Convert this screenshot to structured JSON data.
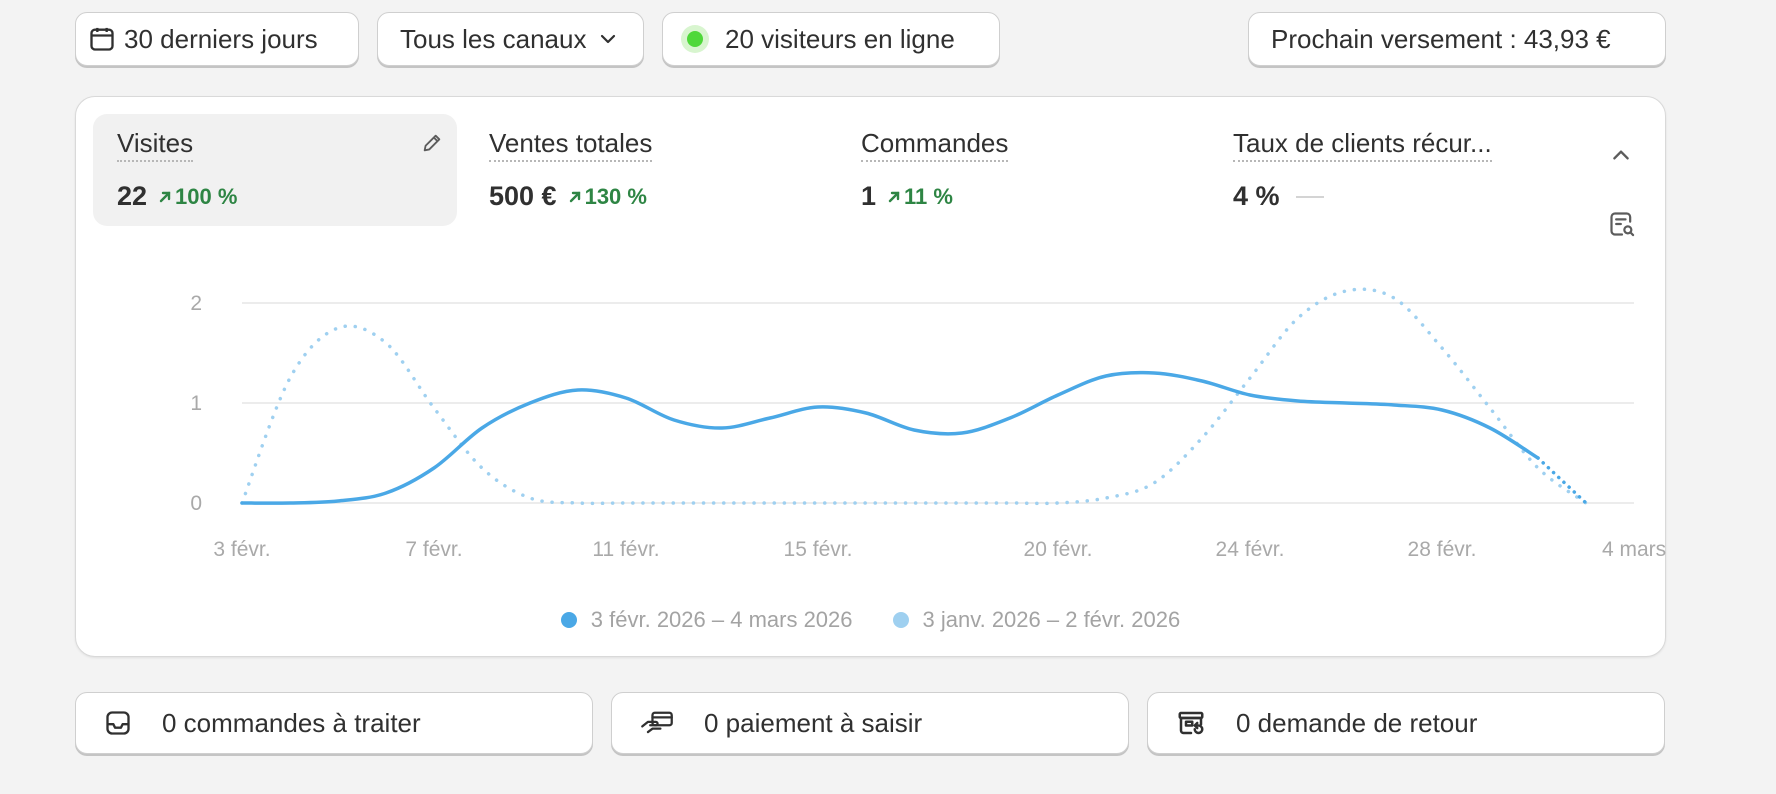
{
  "filters": {
    "date_range_label": "30 derniers jours",
    "channel_label": "Tous les canaux",
    "visitors_online_label": "20 visiteurs en ligne",
    "payout_label": "Prochain versement : 43,93 €"
  },
  "metrics": [
    {
      "label": "Visites",
      "value": "22",
      "change": "100 %",
      "trend": "up",
      "active": true
    },
    {
      "label": "Ventes totales",
      "value": "500 €",
      "change": "130 %",
      "trend": "up",
      "active": false
    },
    {
      "label": "Commandes",
      "value": "1",
      "change": "11 %",
      "trend": "up",
      "active": false
    },
    {
      "label": "Taux de clients récur...",
      "value": "4 %",
      "change": "",
      "trend": "flat",
      "active": false
    }
  ],
  "colors": {
    "current_series": "#4aa8e6",
    "previous_series": "#9fd0f0",
    "positive_change": "#2e8544",
    "online_dot": "#4fd83a"
  },
  "icons": {
    "date": "calendar-icon",
    "channel": "chevron-down-icon",
    "online": "status-dot-icon",
    "edit": "pencil-icon",
    "collapse": "chevron-up-icon",
    "report": "report-search-icon",
    "orders": "inbox-icon",
    "payments": "hand-card-icon",
    "returns": "return-box-icon"
  },
  "chart_data": {
    "type": "line",
    "ylim": [
      0,
      2
    ],
    "yticks": [
      "0",
      "1",
      "2"
    ],
    "xlim": [
      0,
      29
    ],
    "xtick_labels": [
      {
        "x": 0,
        "label": "3 févr."
      },
      {
        "x": 4,
        "label": "7 févr."
      },
      {
        "x": 8,
        "label": "11 févr."
      },
      {
        "x": 12,
        "label": "15 févr."
      },
      {
        "x": 17,
        "label": "20 févr."
      },
      {
        "x": 21,
        "label": "24 févr."
      },
      {
        "x": 25,
        "label": "28 févr."
      },
      {
        "x": 29,
        "label": "4 mars"
      }
    ],
    "series": [
      {
        "name": "3 févr. 2026 – 4 mars 2026",
        "style": "solid",
        "values": [
          0,
          0,
          0.02,
          0.1,
          0.35,
          0.75,
          1.0,
          1.13,
          1.05,
          0.83,
          0.75,
          0.85,
          0.96,
          0.9,
          0.73,
          0.7,
          0.85,
          1.08,
          1.27,
          1.3,
          1.22,
          1.08,
          1.02,
          1.0,
          0.98,
          0.93,
          0.75,
          0.45,
          0.0
        ]
      },
      {
        "name": "3 janv. 2026 – 2 févr. 2026",
        "style": "dotted",
        "values": [
          0,
          1.25,
          1.75,
          1.6,
          0.95,
          0.35,
          0.05,
          0,
          0,
          0,
          0,
          0,
          0,
          0,
          0,
          0,
          0,
          0,
          0.05,
          0.2,
          0.65,
          1.25,
          1.85,
          2.12,
          2.05,
          1.55,
          0.95,
          0.35,
          0
        ]
      }
    ],
    "legend": "bottom-center"
  },
  "tasks": [
    {
      "label": "0 commandes à traiter"
    },
    {
      "label": "0 paiement à saisir"
    },
    {
      "label": "0 demande de retour"
    }
  ]
}
